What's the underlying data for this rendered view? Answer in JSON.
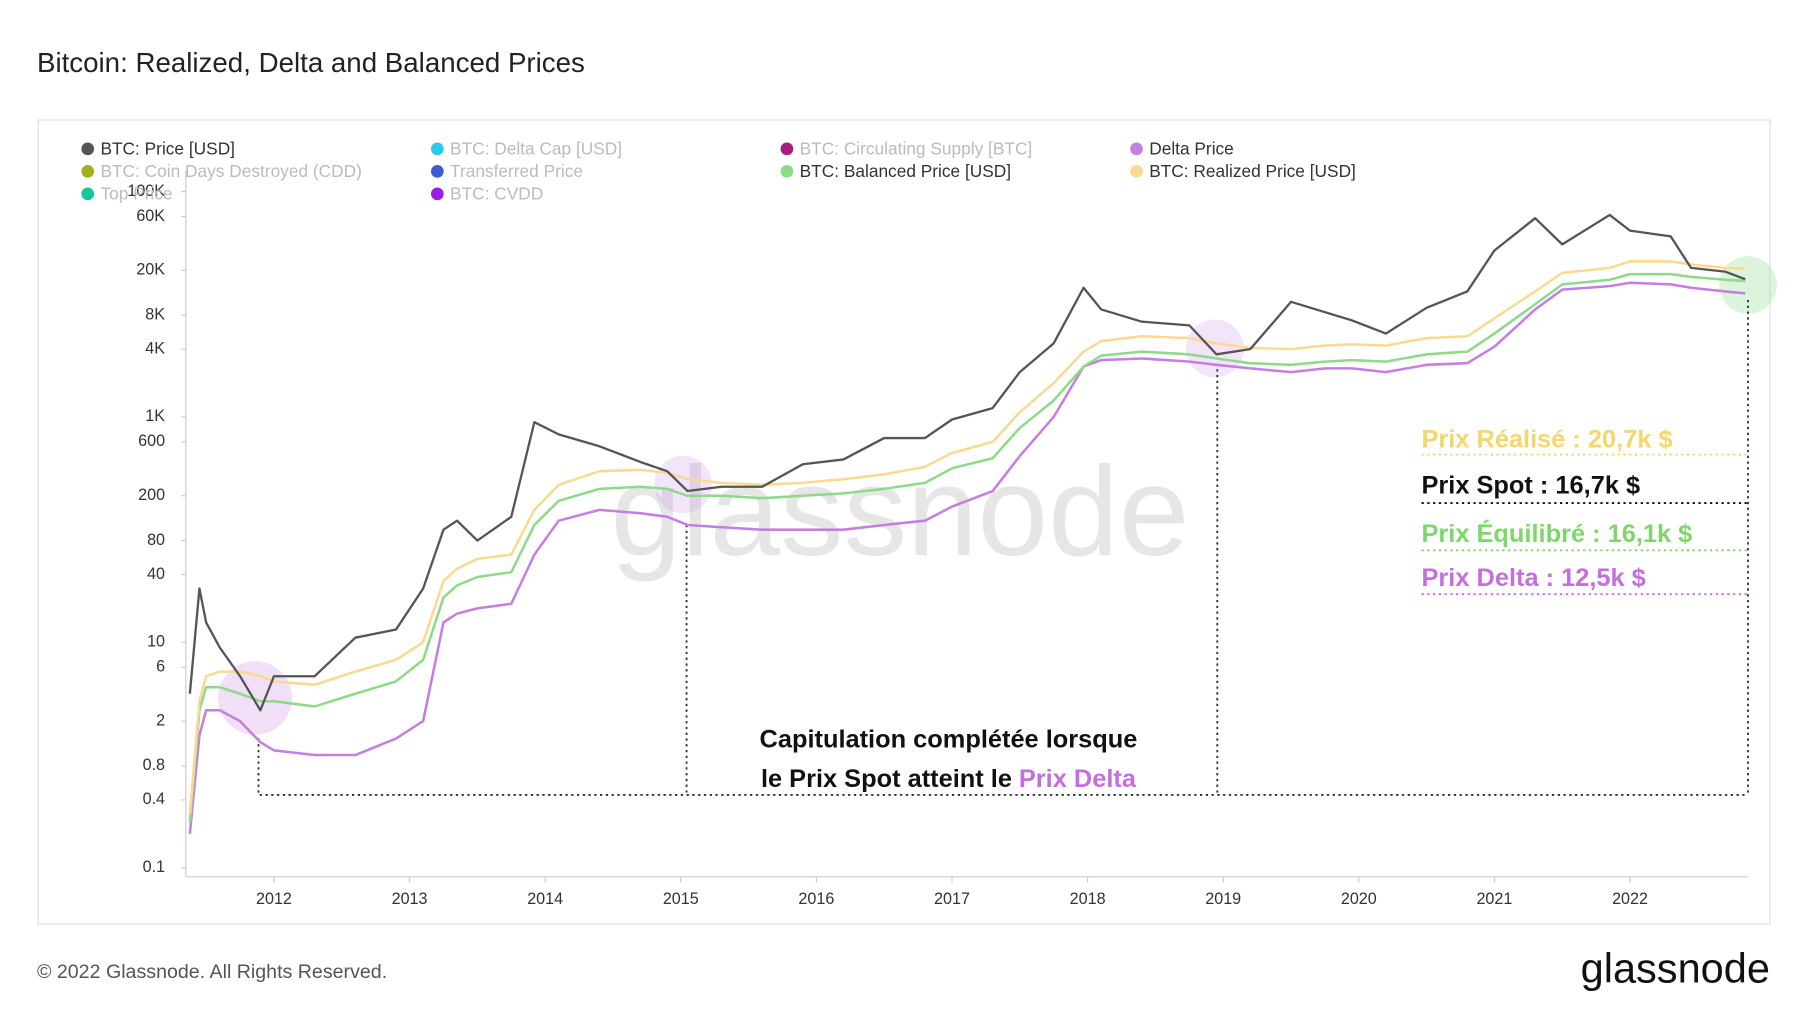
{
  "chart_data": {
    "type": "line",
    "title": "Bitcoin: Realized, Delta and Balanced Prices",
    "footer": "© 2022 Glassnode. All Rights Reserved.",
    "logo": "glassnode",
    "watermark": "glassnode",
    "log_scale": true,
    "grid": false,
    "xlim": [
      2011.35,
      2022.87
    ],
    "xticks": [
      2012,
      2013,
      2014,
      2015,
      2016,
      2017,
      2018,
      2019,
      2020,
      2021,
      2022
    ],
    "ylim": [
      0.083,
      153000
    ],
    "yticks": [
      0.1,
      0.4,
      0.8,
      2,
      6,
      10,
      40,
      80,
      200,
      600,
      {
        "value": 1000,
        "label": "1K"
      },
      {
        "value": 4000,
        "label": "4K"
      },
      {
        "value": 8000,
        "label": "8K"
      },
      {
        "value": 20000,
        "label": "20K"
      },
      {
        "value": 60000,
        "label": "60K"
      },
      {
        "value": 100000,
        "label": "100K"
      }
    ],
    "x": [
      2011.38,
      2011.45,
      2011.5,
      2011.6,
      2011.75,
      2011.9,
      2012.0,
      2012.3,
      2012.6,
      2012.9,
      2013.1,
      2013.25,
      2013.35,
      2013.5,
      2013.75,
      2013.92,
      2014.1,
      2014.4,
      2014.7,
      2014.9,
      2015.05,
      2015.3,
      2015.6,
      2015.9,
      2016.2,
      2016.5,
      2016.8,
      2017.0,
      2017.3,
      2017.5,
      2017.75,
      2017.97,
      2018.1,
      2018.4,
      2018.75,
      2018.95,
      2019.2,
      2019.5,
      2019.75,
      2019.95,
      2020.2,
      2020.5,
      2020.8,
      2021.0,
      2021.3,
      2021.5,
      2021.85,
      2022.0,
      2022.3,
      2022.45,
      2022.7,
      2022.85
    ],
    "series": [
      {
        "name": "BTC: Price [USD]",
        "color": "#555555",
        "values": [
          3.5,
          30,
          15,
          9,
          5,
          2.5,
          5,
          5,
          11,
          13,
          30,
          100,
          120,
          80,
          130,
          900,
          700,
          550,
          400,
          330,
          220,
          240,
          240,
          380,
          420,
          650,
          650,
          950,
          1200,
          2500,
          4500,
          14000,
          9000,
          7000,
          6500,
          3600,
          4000,
          10500,
          8500,
          7200,
          5500,
          9300,
          13000,
          30000,
          58000,
          34000,
          62000,
          45000,
          40000,
          21000,
          19500,
          16700
        ]
      },
      {
        "name": "BTC: Delta Cap [USD]",
        "color": "#29c9ee",
        "hidden": true
      },
      {
        "name": "BTC: Circulating Supply [BTC]",
        "color": "#a3207a",
        "hidden": true
      },
      {
        "name": "Delta Price",
        "color": "#c47fe0",
        "values": [
          0.2,
          1.5,
          2.5,
          2.5,
          2,
          1.3,
          1.1,
          1.0,
          1.0,
          1.4,
          2,
          15,
          18,
          20,
          22,
          60,
          120,
          150,
          140,
          130,
          110,
          105,
          100,
          100,
          100,
          110,
          120,
          160,
          220,
          450,
          1000,
          2800,
          3200,
          3300,
          3100,
          2900,
          2700,
          2500,
          2700,
          2700,
          2500,
          2900,
          3000,
          4200,
          9000,
          13500,
          14500,
          15500,
          15000,
          14000,
          13000,
          12500
        ]
      },
      {
        "name": "BTC: Coin Days Destroyed (CDD)",
        "color": "#a3b01d",
        "hidden": true
      },
      {
        "name": "Transferred Price",
        "color": "#3b5bdb",
        "hidden": true
      },
      {
        "name": "BTC: Balanced Price [USD]",
        "color": "#8fd98a",
        "values": [
          0.25,
          2.5,
          4,
          4,
          3.5,
          3,
          3,
          2.7,
          3.5,
          4.5,
          7,
          25,
          32,
          38,
          42,
          110,
          180,
          230,
          240,
          230,
          200,
          200,
          190,
          200,
          210,
          230,
          260,
          350,
          430,
          800,
          1400,
          2800,
          3500,
          3800,
          3600,
          3300,
          3000,
          2900,
          3100,
          3200,
          3100,
          3600,
          3800,
          5500,
          10000,
          15000,
          16500,
          18500,
          18500,
          17500,
          16500,
          16100
        ]
      },
      {
        "name": "BTC: Realized Price [USD]",
        "color": "#fcd992",
        "values": [
          0.3,
          3,
          5,
          5.5,
          5.5,
          5,
          4.5,
          4.2,
          5.5,
          7,
          10,
          35,
          45,
          55,
          60,
          150,
          250,
          330,
          340,
          320,
          280,
          260,
          250,
          260,
          280,
          310,
          360,
          480,
          600,
          1100,
          2000,
          3800,
          4700,
          5200,
          5000,
          4500,
          4100,
          4000,
          4300,
          4400,
          4300,
          5000,
          5200,
          7500,
          13000,
          19000,
          21000,
          24000,
          24000,
          22500,
          21000,
          20700
        ]
      },
      {
        "name": "Top Price",
        "color": "#12c79a",
        "hidden": true
      },
      {
        "name": "BTC: CVDD",
        "color": "#9b1ee8",
        "hidden": true
      }
    ],
    "annotations": [
      {
        "text": "Prix Réalisé : 20,7k $",
        "color": "#f5d66b"
      },
      {
        "text": "Prix Spot : 16,7k $",
        "color": "#111111"
      },
      {
        "text": "Prix Équilibré : 16,1k $",
        "color": "#7fd66a"
      },
      {
        "text": "Prix Delta : 12,5k $",
        "color": "#c46ee0"
      }
    ],
    "capitulation": [
      "Capitulation complétée lorsque",
      "le Prix Spot atteint le"
    ],
    "capitulation_highlight": {
      "text": "Prix Delta",
      "color": "#c46ee0"
    }
  }
}
